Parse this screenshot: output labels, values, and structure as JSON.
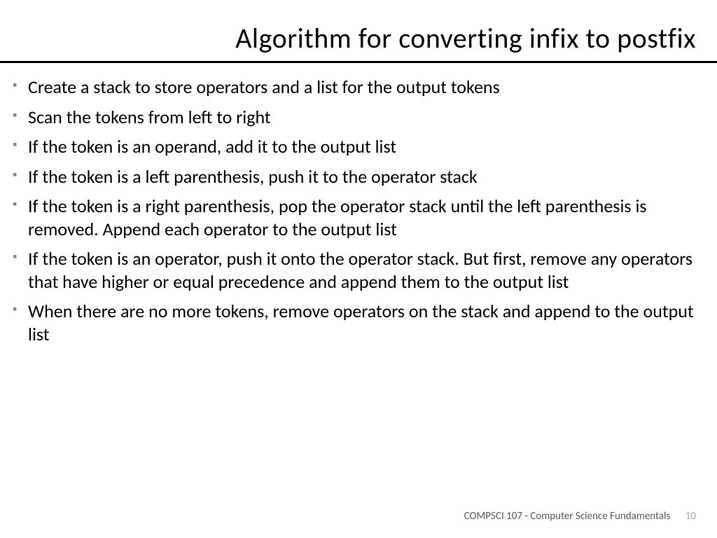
{
  "slide": {
    "title": "Algorithm for converting infix to postfix",
    "bullets": [
      "Create a stack to store operators and a list for the output tokens",
      "Scan the tokens from left to right",
      "If the token is an operand, add it to the output list",
      "If the token is a left parenthesis, push it to the operator stack",
      "If the token is a right parenthesis, pop the operator stack until the left parenthesis is removed.  Append each operator to the output list",
      "If the token is an operator, push it onto the operator stack.  But first, remove any operators that have higher or equal precedence and append them to the output list",
      "When there are no more tokens, remove operators on the stack and append to the output list"
    ],
    "footer_label": "COMPSCI 107 - Computer Science Fundamentals",
    "page_number": "10"
  },
  "style": {
    "background_color": "#ffffff",
    "title_color": "#000000",
    "title_fontsize": 40,
    "rule_color": "#000000",
    "rule_thickness": 3,
    "bullet_marker_color": "#868686",
    "body_color": "#000000",
    "body_fontsize": 26,
    "footer_color": "#595959",
    "pagenum_color": "#a6a6a6",
    "footer_fontsize": 15
  }
}
